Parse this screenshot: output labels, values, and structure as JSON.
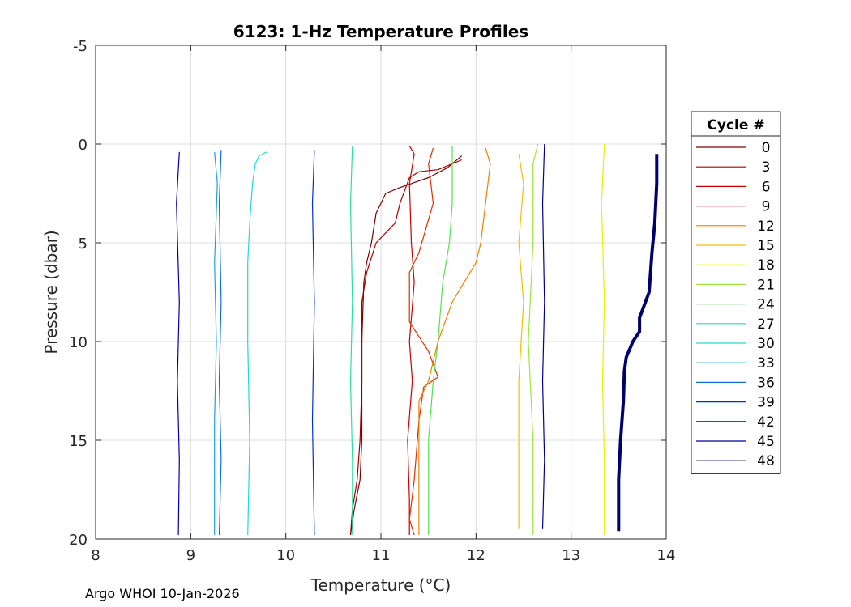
{
  "chart_data": {
    "type": "line",
    "title": "6123: 1-Hz Temperature Profiles",
    "xlabel": "Temperature (°C)",
    "ylabel": "Pressure (dbar)",
    "xlim": [
      8,
      14
    ],
    "ylim": [
      -5,
      20
    ],
    "y_reversed": true,
    "grid": true,
    "x_ticks": [
      "8",
      "9",
      "10",
      "11",
      "12",
      "13",
      "14"
    ],
    "y_ticks": [
      "-5",
      "0",
      "5",
      "10",
      "15",
      "20"
    ],
    "legend": {
      "title": "Cycle #",
      "placement": "right-outside",
      "entries": [
        {
          "label": "0",
          "color": "#7f0000"
        },
        {
          "label": "3",
          "color": "#a50000"
        },
        {
          "label": "6",
          "color": "#cc0000"
        },
        {
          "label": "9",
          "color": "#e03000"
        },
        {
          "label": "12",
          "color": "#f08000"
        },
        {
          "label": "15",
          "color": "#f0c000"
        },
        {
          "label": "18",
          "color": "#e8f000"
        },
        {
          "label": "21",
          "color": "#9ee63c"
        },
        {
          "label": "24",
          "color": "#55e055"
        },
        {
          "label": "27",
          "color": "#28e0a0"
        },
        {
          "label": "30",
          "color": "#20d8d8"
        },
        {
          "label": "33",
          "color": "#1aa0e6"
        },
        {
          "label": "36",
          "color": "#0a6edc"
        },
        {
          "label": "39",
          "color": "#0032c8"
        },
        {
          "label": "42",
          "color": "#0000b4"
        },
        {
          "label": "45",
          "color": "#000096"
        },
        {
          "label": "48",
          "color": "#00006e"
        }
      ]
    },
    "series": [
      {
        "name": "0",
        "color": "#7f0000",
        "points": [
          [
            11.85,
            0.6
          ],
          [
            11.7,
            1.2
          ],
          [
            11.5,
            1.7
          ],
          [
            11.2,
            2.2
          ],
          [
            11.05,
            2.5
          ],
          [
            10.95,
            3.5
          ],
          [
            10.9,
            5.0
          ],
          [
            10.85,
            6.0
          ],
          [
            10.82,
            7.0
          ],
          [
            10.8,
            10.0
          ],
          [
            10.8,
            15.0
          ],
          [
            10.78,
            17.0
          ],
          [
            10.72,
            18.5
          ],
          [
            10.68,
            19.8
          ]
        ]
      },
      {
        "name": "3",
        "color": "#a50000",
        "points": [
          [
            11.85,
            0.8
          ],
          [
            11.6,
            1.3
          ],
          [
            11.4,
            1.4
          ],
          [
            11.3,
            1.7
          ],
          [
            11.2,
            3.0
          ],
          [
            11.15,
            4.0
          ],
          [
            10.95,
            5.0
          ],
          [
            10.85,
            6.5
          ],
          [
            10.8,
            8.0
          ],
          [
            10.8,
            12.0
          ],
          [
            10.78,
            15.0
          ],
          [
            10.75,
            17.0
          ],
          [
            10.7,
            18.5
          ],
          [
            10.68,
            19.8
          ]
        ]
      },
      {
        "name": "6",
        "color": "#cc0000",
        "points": [
          [
            11.3,
            0.1
          ],
          [
            11.35,
            0.5
          ],
          [
            11.3,
            2.0
          ],
          [
            11.32,
            5.0
          ],
          [
            11.35,
            7.0
          ],
          [
            11.3,
            10.0
          ],
          [
            11.33,
            12.0
          ],
          [
            11.28,
            15.0
          ],
          [
            11.3,
            18.0
          ],
          [
            11.3,
            19.8
          ]
        ]
      },
      {
        "name": "9",
        "color": "#e03000",
        "points": [
          [
            11.55,
            0.2
          ],
          [
            11.5,
            1.0
          ],
          [
            11.55,
            3.0
          ],
          [
            11.4,
            5.5
          ],
          [
            11.3,
            6.5
          ],
          [
            11.3,
            9.0
          ],
          [
            11.5,
            10.5
          ],
          [
            11.6,
            11.8
          ],
          [
            11.45,
            12.3
          ],
          [
            11.4,
            14.0
          ],
          [
            11.35,
            17.0
          ],
          [
            11.3,
            19.0
          ],
          [
            11.35,
            19.8
          ]
        ]
      },
      {
        "name": "12",
        "color": "#f08000",
        "points": [
          [
            12.1,
            0.2
          ],
          [
            12.15,
            1.0
          ],
          [
            12.1,
            3.0
          ],
          [
            12.05,
            5.0
          ],
          [
            12.0,
            6.0
          ],
          [
            11.75,
            8.0
          ],
          [
            11.6,
            10.0
          ],
          [
            11.5,
            12.0
          ],
          [
            11.4,
            13.0
          ],
          [
            11.4,
            15.0
          ],
          [
            11.4,
            19.8
          ]
        ]
      },
      {
        "name": "15",
        "color": "#f0c000",
        "points": [
          [
            12.45,
            0.5
          ],
          [
            12.5,
            2.0
          ],
          [
            12.45,
            5.0
          ],
          [
            12.5,
            8.0
          ],
          [
            12.45,
            12.0
          ],
          [
            12.45,
            15.0
          ],
          [
            12.45,
            19.5
          ]
        ]
      },
      {
        "name": "18",
        "color": "#e8f000",
        "points": [
          [
            13.35,
            0.0
          ],
          [
            13.32,
            3.0
          ],
          [
            13.35,
            8.0
          ],
          [
            13.33,
            12.0
          ],
          [
            13.35,
            16.0
          ],
          [
            13.35,
            19.8
          ]
        ]
      },
      {
        "name": "21",
        "color": "#9ee63c",
        "points": [
          [
            12.65,
            0.0
          ],
          [
            12.6,
            1.0
          ],
          [
            12.6,
            5.0
          ],
          [
            12.55,
            10.0
          ],
          [
            12.6,
            15.0
          ],
          [
            12.6,
            19.8
          ]
        ]
      },
      {
        "name": "24",
        "color": "#55e055",
        "points": [
          [
            11.75,
            0.1
          ],
          [
            11.75,
            3.0
          ],
          [
            11.72,
            5.0
          ],
          [
            11.65,
            7.0
          ],
          [
            11.6,
            10.0
          ],
          [
            11.55,
            12.0
          ],
          [
            11.5,
            15.0
          ],
          [
            11.5,
            19.8
          ]
        ]
      },
      {
        "name": "27",
        "color": "#28e0a0",
        "points": [
          [
            10.7,
            0.1
          ],
          [
            10.68,
            3.0
          ],
          [
            10.7,
            8.0
          ],
          [
            10.68,
            12.0
          ],
          [
            10.7,
            16.0
          ],
          [
            10.7,
            19.8
          ]
        ]
      },
      {
        "name": "30",
        "color": "#20d8d8",
        "points": [
          [
            9.8,
            0.4
          ],
          [
            9.72,
            0.6
          ],
          [
            9.68,
            1.0
          ],
          [
            9.65,
            2.0
          ],
          [
            9.62,
            4.0
          ],
          [
            9.6,
            6.0
          ],
          [
            9.6,
            10.0
          ],
          [
            9.62,
            15.0
          ],
          [
            9.6,
            19.8
          ]
        ]
      },
      {
        "name": "33",
        "color": "#1aa0e6",
        "points": [
          [
            9.25,
            0.4
          ],
          [
            9.28,
            2.0
          ],
          [
            9.25,
            6.0
          ],
          [
            9.27,
            10.0
          ],
          [
            9.25,
            14.0
          ],
          [
            9.25,
            19.8
          ]
        ]
      },
      {
        "name": "36",
        "color": "#0a6edc",
        "points": [
          [
            9.32,
            0.3
          ],
          [
            9.3,
            3.0
          ],
          [
            9.32,
            8.0
          ],
          [
            9.3,
            12.0
          ],
          [
            9.32,
            16.0
          ],
          [
            9.3,
            19.8
          ]
        ]
      },
      {
        "name": "39",
        "color": "#0032c8",
        "points": [
          [
            10.3,
            0.3
          ],
          [
            10.28,
            3.0
          ],
          [
            10.3,
            8.0
          ],
          [
            10.28,
            14.0
          ],
          [
            10.3,
            19.8
          ]
        ]
      },
      {
        "name": "42",
        "color": "#0000b4",
        "points": [
          [
            8.88,
            0.4
          ],
          [
            8.85,
            3.0
          ],
          [
            8.88,
            8.0
          ],
          [
            8.86,
            12.0
          ],
          [
            8.88,
            16.0
          ],
          [
            8.87,
            19.8
          ]
        ]
      },
      {
        "name": "45",
        "color": "#000096",
        "points": [
          [
            12.72,
            0.0
          ],
          [
            12.7,
            3.0
          ],
          [
            12.72,
            8.0
          ],
          [
            12.7,
            12.0
          ],
          [
            12.72,
            16.0
          ],
          [
            12.7,
            19.5
          ]
        ]
      },
      {
        "name": "48",
        "color": "#00006e",
        "points": [
          [
            13.9,
            0.5
          ],
          [
            13.9,
            2.0
          ],
          [
            13.88,
            4.0
          ],
          [
            13.85,
            5.5
          ],
          [
            13.82,
            7.5
          ],
          [
            13.72,
            8.8
          ],
          [
            13.72,
            9.5
          ],
          [
            13.65,
            10.0
          ],
          [
            13.58,
            10.8
          ],
          [
            13.56,
            11.5
          ],
          [
            13.55,
            13.0
          ],
          [
            13.52,
            15.0
          ],
          [
            13.5,
            17.0
          ],
          [
            13.5,
            19.6
          ]
        ]
      }
    ]
  },
  "footer": {
    "org": "Argo WHOI",
    "date": "10-Jan-2026"
  }
}
